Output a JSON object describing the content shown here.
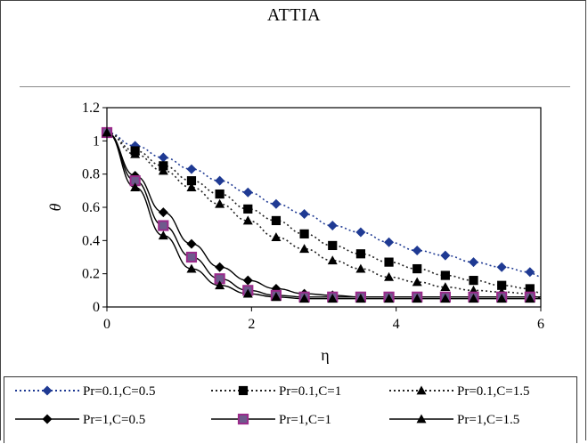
{
  "header": {
    "title": "ATTIA"
  },
  "chart_data": {
    "type": "line",
    "title": "",
    "xlabel": "η",
    "ylabel": "θ",
    "xlim": [
      0,
      6
    ],
    "ylim": [
      0,
      1.2
    ],
    "xticks": [
      "0",
      "2",
      "4",
      "6"
    ],
    "yticks": [
      "0",
      "0.2",
      "0.4",
      "0.6",
      "0.8",
      "1",
      "1.2"
    ],
    "legend_position": "bottom",
    "series": [
      {
        "name": "Pr=0.1,C=0.5",
        "marker": "diamond",
        "line": "dotted",
        "color": "#1f3a93",
        "x": [
          0,
          0.39,
          0.78,
          1.17,
          1.56,
          1.95,
          2.34,
          2.73,
          3.12,
          3.51,
          3.9,
          4.29,
          4.68,
          5.07,
          5.46,
          5.85
        ],
        "y": [
          1.05,
          0.97,
          0.9,
          0.83,
          0.76,
          0.69,
          0.62,
          0.56,
          0.49,
          0.45,
          0.39,
          0.34,
          0.31,
          0.27,
          0.24,
          0.21
        ]
      },
      {
        "name": "Pr=0.1,C=1",
        "marker": "square",
        "line": "dotted",
        "color": "#000000",
        "x": [
          0,
          0.39,
          0.78,
          1.17,
          1.56,
          1.95,
          2.34,
          2.73,
          3.12,
          3.51,
          3.9,
          4.29,
          4.68,
          5.07,
          5.46,
          5.85
        ],
        "y": [
          1.05,
          0.94,
          0.85,
          0.76,
          0.68,
          0.59,
          0.52,
          0.44,
          0.37,
          0.32,
          0.27,
          0.23,
          0.19,
          0.16,
          0.13,
          0.11
        ]
      },
      {
        "name": "Pr=0.1,C=1.5",
        "marker": "triangle",
        "line": "dotted",
        "color": "#000000",
        "x": [
          0,
          0.39,
          0.78,
          1.17,
          1.56,
          1.95,
          2.34,
          2.73,
          3.12,
          3.51,
          3.9,
          4.29,
          4.68,
          5.07,
          5.46,
          5.85
        ],
        "y": [
          1.05,
          0.92,
          0.82,
          0.72,
          0.62,
          0.52,
          0.42,
          0.35,
          0.28,
          0.23,
          0.18,
          0.15,
          0.12,
          0.1,
          0.09,
          0.08
        ]
      },
      {
        "name": "Pr=1,C=0.5",
        "marker": "diamond",
        "line": "solid",
        "color": "#000000",
        "x": [
          0,
          0.39,
          0.78,
          1.17,
          1.56,
          1.95,
          2.34,
          2.73,
          3.12,
          3.51,
          3.9,
          4.29,
          4.68,
          5.07,
          5.46,
          5.85
        ],
        "y": [
          1.05,
          0.79,
          0.57,
          0.38,
          0.24,
          0.16,
          0.11,
          0.08,
          0.07,
          0.06,
          0.06,
          0.06,
          0.06,
          0.06,
          0.06,
          0.06
        ]
      },
      {
        "name": "Pr=1,C=1",
        "marker": "square",
        "line": "solid",
        "color": "#8b2c7a",
        "x": [
          0,
          0.39,
          0.78,
          1.17,
          1.56,
          1.95,
          2.34,
          2.73,
          3.12,
          3.51,
          3.9,
          4.29,
          4.68,
          5.07,
          5.46,
          5.85
        ],
        "y": [
          1.05,
          0.76,
          0.49,
          0.3,
          0.17,
          0.1,
          0.07,
          0.06,
          0.06,
          0.06,
          0.06,
          0.06,
          0.06,
          0.06,
          0.06,
          0.06
        ]
      },
      {
        "name": "Pr=1,C=1.5",
        "marker": "triangle",
        "line": "solid",
        "color": "#000000",
        "x": [
          0,
          0.39,
          0.78,
          1.17,
          1.56,
          1.95,
          2.34,
          2.73,
          3.12,
          3.51,
          3.9,
          4.29,
          4.68,
          5.07,
          5.46,
          5.85
        ],
        "y": [
          1.05,
          0.72,
          0.43,
          0.23,
          0.13,
          0.08,
          0.06,
          0.05,
          0.05,
          0.05,
          0.05,
          0.05,
          0.05,
          0.05,
          0.05,
          0.05
        ]
      }
    ]
  }
}
